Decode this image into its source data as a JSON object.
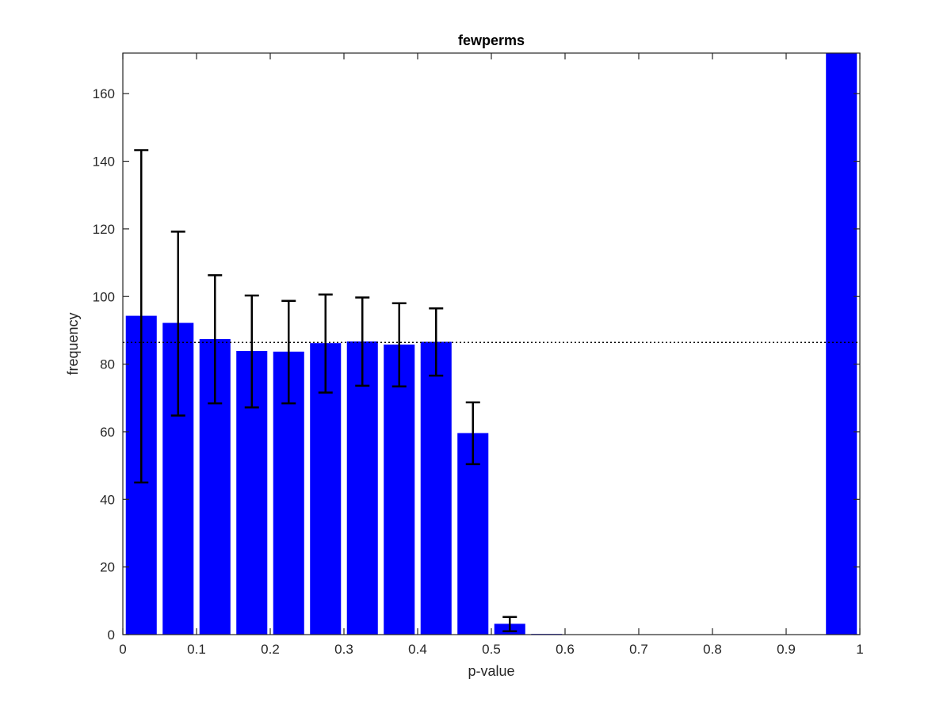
{
  "chart_data": {
    "type": "bar",
    "title": "fewperms",
    "xlabel": "p-value",
    "ylabel": "frequency",
    "xlim": [
      0,
      1
    ],
    "ylim": [
      0,
      172
    ],
    "x_ticks": [
      "0",
      "0.1",
      "0.2",
      "0.3",
      "0.4",
      "0.5",
      "0.6",
      "0.7",
      "0.8",
      "0.9",
      "1"
    ],
    "y_ticks": [
      "0",
      "20",
      "40",
      "60",
      "80",
      "100",
      "120",
      "140",
      "160"
    ],
    "bar_color": "#0000ff",
    "errorbar_color": "#000000",
    "x": [
      0.025,
      0.075,
      0.125,
      0.175,
      0.225,
      0.275,
      0.325,
      0.375,
      0.425,
      0.475,
      0.525,
      0.575,
      0.625,
      0.675,
      0.725,
      0.775,
      0.825,
      0.875,
      0.925,
      0.975
    ],
    "values": [
      94.3,
      92.2,
      87.4,
      83.9,
      83.7,
      86.2,
      86.7,
      85.8,
      86.6,
      59.6,
      3.2,
      0.2,
      0.1,
      0.1,
      0.1,
      0.1,
      0.1,
      0.1,
      0.1,
      172
    ],
    "error_low": [
      45,
      64.8,
      68.4,
      67.2,
      68.4,
      71.6,
      73.6,
      73.4,
      76.6,
      50.4,
      1.0,
      null,
      null,
      null,
      null,
      null,
      null,
      null,
      null,
      null
    ],
    "error_high": [
      143.3,
      119.2,
      106.3,
      100.3,
      98.7,
      100.6,
      99.7,
      98.0,
      96.5,
      68.7,
      5.2,
      null,
      null,
      null,
      null,
      null,
      null,
      null,
      null,
      null
    ],
    "reference_line": {
      "y": 86.4,
      "style": "dotted"
    },
    "grid": false
  }
}
